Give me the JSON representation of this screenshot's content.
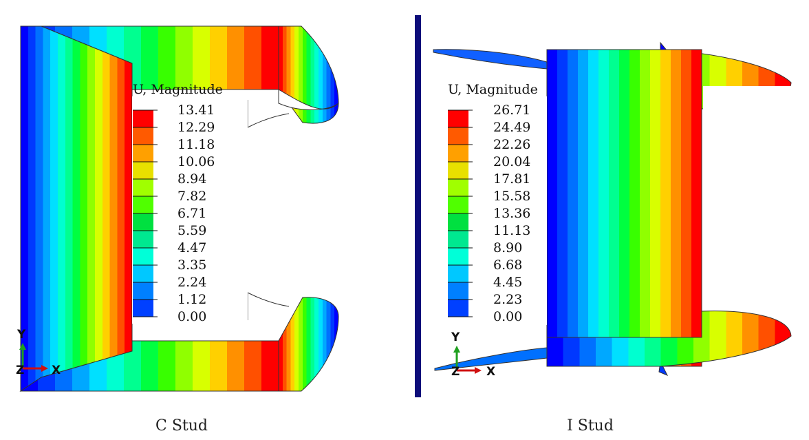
{
  "colormap": [
    "#0000ff",
    "#0038ff",
    "#0070ff",
    "#00a8ff",
    "#00e0ff",
    "#00ffd0",
    "#00ff90",
    "#00ff40",
    "#38ff00",
    "#90ff00",
    "#d8ff00",
    "#ffd000",
    "#ff9000",
    "#ff5000",
    "#ff0000"
  ],
  "divider_color": "#0d0d7a",
  "panels": [
    {
      "caption": "C Stud",
      "legend": {
        "title": "U, Magnitude",
        "values": [
          "13.41",
          "12.29",
          "11.18",
          "10.06",
          "8.94",
          "7.82",
          "6.71",
          "5.59",
          "4.47",
          "3.35",
          "2.24",
          "1.12",
          "0.00"
        ]
      },
      "triad": {
        "y": "Y",
        "x": "X",
        "z": "Z"
      }
    },
    {
      "caption": "I Stud",
      "legend": {
        "title": "U, Magnitude",
        "values": [
          "26.71",
          "24.49",
          "22.26",
          "20.04",
          "17.81",
          "15.58",
          "13.36",
          "11.13",
          "8.90",
          "6.68",
          "4.45",
          "2.23",
          "0.00"
        ]
      },
      "triad": {
        "y": "Y",
        "x": "X",
        "z": "Z"
      }
    }
  ]
}
